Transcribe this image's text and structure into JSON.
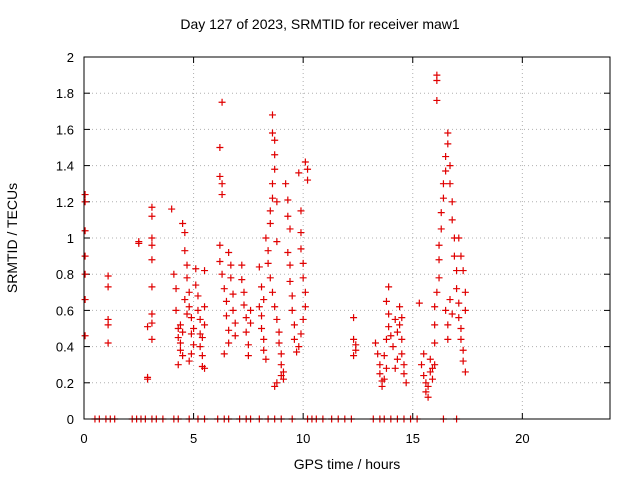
{
  "chart_data": {
    "type": "scatter",
    "title": "Day 127 of 2023, SRMTID for receiver maw1",
    "xlabel": "GPS time / hours",
    "ylabel": "SRMTID / TECUs",
    "xlim": [
      0,
      24
    ],
    "ylim": [
      0,
      2
    ],
    "xticks": [
      "0",
      "5",
      "10",
      "15",
      "20"
    ],
    "xtick_values": [
      0,
      5,
      10,
      15,
      20
    ],
    "yticks": [
      "0",
      "0.2",
      "0.4",
      "0.6",
      "0.8",
      "1",
      "1.2",
      "1.4",
      "1.6",
      "1.8",
      "2"
    ],
    "ytick_values": [
      0,
      0.2,
      0.4,
      0.6,
      0.8,
      1,
      1.2,
      1.4,
      1.6,
      1.8,
      2
    ],
    "grid": true,
    "marker": "+",
    "color": "#e00000",
    "series": [
      {
        "name": "maw1",
        "points": [
          [
            0.05,
            1.24
          ],
          [
            0.05,
            1.04
          ],
          [
            0.05,
            0.9
          ],
          [
            0.05,
            0.8
          ],
          [
            0.05,
            0.66
          ],
          [
            0.05,
            0.46
          ],
          [
            0.05,
            1.2
          ],
          [
            1.1,
            0.79
          ],
          [
            1.1,
            0.73
          ],
          [
            1.1,
            0.55
          ],
          [
            1.1,
            0.52
          ],
          [
            1.1,
            0.42
          ],
          [
            2.5,
            0.98
          ],
          [
            2.5,
            0.97
          ],
          [
            2.9,
            0.51
          ],
          [
            2.9,
            0.23
          ],
          [
            2.9,
            0.22
          ],
          [
            3.1,
            1.17
          ],
          [
            3.1,
            1.12
          ],
          [
            3.1,
            1.0
          ],
          [
            3.1,
            0.96
          ],
          [
            3.1,
            0.88
          ],
          [
            3.1,
            0.73
          ],
          [
            3.1,
            0.58
          ],
          [
            3.1,
            0.53
          ],
          [
            3.1,
            0.44
          ],
          [
            4.0,
            1.16
          ],
          [
            4.1,
            0.8
          ],
          [
            4.2,
            0.72
          ],
          [
            4.2,
            0.6
          ],
          [
            4.3,
            0.5
          ],
          [
            4.3,
            0.45
          ],
          [
            4.4,
            0.42
          ],
          [
            4.4,
            0.38
          ],
          [
            4.5,
            0.35
          ],
          [
            4.3,
            0.3
          ],
          [
            4.5,
            1.08
          ],
          [
            4.6,
            1.03
          ],
          [
            4.6,
            0.93
          ],
          [
            4.7,
            0.85
          ],
          [
            4.7,
            0.78
          ],
          [
            4.8,
            0.7
          ],
          [
            4.8,
            0.62
          ],
          [
            4.9,
            0.56
          ],
          [
            4.9,
            0.47
          ],
          [
            5.0,
            0.41
          ],
          [
            4.8,
            0.32
          ],
          [
            4.9,
            0.36
          ],
          [
            5.0,
            0.5
          ],
          [
            4.6,
            0.66
          ],
          [
            4.7,
            0.58
          ],
          [
            4.5,
            0.48
          ],
          [
            4.4,
            0.52
          ],
          [
            5.1,
            0.83
          ],
          [
            5.1,
            0.74
          ],
          [
            5.2,
            0.68
          ],
          [
            5.2,
            0.6
          ],
          [
            5.3,
            0.55
          ],
          [
            5.3,
            0.47
          ],
          [
            5.3,
            0.4
          ],
          [
            5.4,
            0.35
          ],
          [
            5.4,
            0.29
          ],
          [
            5.5,
            0.28
          ],
          [
            5.5,
            0.82
          ],
          [
            5.5,
            0.62
          ],
          [
            5.5,
            0.52
          ],
          [
            5.4,
            0.45
          ],
          [
            6.2,
            1.5
          ],
          [
            6.2,
            1.34
          ],
          [
            6.3,
            1.24
          ],
          [
            6.3,
            1.3
          ],
          [
            6.3,
            1.75
          ],
          [
            6.2,
            0.96
          ],
          [
            6.2,
            0.87
          ],
          [
            6.3,
            0.8
          ],
          [
            6.4,
            0.72
          ],
          [
            6.5,
            0.65
          ],
          [
            6.5,
            0.57
          ],
          [
            6.6,
            0.49
          ],
          [
            6.6,
            0.42
          ],
          [
            6.4,
            0.36
          ],
          [
            6.6,
            0.92
          ],
          [
            6.7,
            0.85
          ],
          [
            6.7,
            0.78
          ],
          [
            6.8,
            0.69
          ],
          [
            6.8,
            0.6
          ],
          [
            6.9,
            0.53
          ],
          [
            6.9,
            0.46
          ],
          [
            7.2,
            0.85
          ],
          [
            7.2,
            0.77
          ],
          [
            7.3,
            0.7
          ],
          [
            7.3,
            0.63
          ],
          [
            7.4,
            0.56
          ],
          [
            7.4,
            0.48
          ],
          [
            7.5,
            0.41
          ],
          [
            7.5,
            0.35
          ],
          [
            7.6,
            0.6
          ],
          [
            7.6,
            0.53
          ],
          [
            8.0,
            0.62
          ],
          [
            8.1,
            0.57
          ],
          [
            8.1,
            0.5
          ],
          [
            8.2,
            0.44
          ],
          [
            8.2,
            0.38
          ],
          [
            8.3,
            0.33
          ],
          [
            8.0,
            0.84
          ],
          [
            8.1,
            0.73
          ],
          [
            8.2,
            0.66
          ],
          [
            8.3,
            1.0
          ],
          [
            8.4,
            0.93
          ],
          [
            8.4,
            0.86
          ],
          [
            8.5,
            1.08
          ],
          [
            8.5,
            1.15
          ],
          [
            8.6,
            1.22
          ],
          [
            8.6,
            1.3
          ],
          [
            8.7,
            1.38
          ],
          [
            8.7,
            1.46
          ],
          [
            8.6,
            1.58
          ],
          [
            8.6,
            1.68
          ],
          [
            8.7,
            1.54
          ],
          [
            8.8,
            1.2
          ],
          [
            8.8,
            0.98
          ],
          [
            8.5,
            0.78
          ],
          [
            8.6,
            0.7
          ],
          [
            8.7,
            0.62
          ],
          [
            8.8,
            0.55
          ],
          [
            8.9,
            0.48
          ],
          [
            8.9,
            0.42
          ],
          [
            9.0,
            0.36
          ],
          [
            9.0,
            0.3
          ],
          [
            9.1,
            0.26
          ],
          [
            9.1,
            0.22
          ],
          [
            8.7,
            0.18
          ],
          [
            8.8,
            0.2
          ],
          [
            9.0,
            0.24
          ],
          [
            9.2,
            1.3
          ],
          [
            9.3,
            1.21
          ],
          [
            9.3,
            1.12
          ],
          [
            9.4,
            1.05
          ],
          [
            9.3,
            0.92
          ],
          [
            9.4,
            0.85
          ],
          [
            9.4,
            0.76
          ],
          [
            9.5,
            0.68
          ],
          [
            9.5,
            0.6
          ],
          [
            9.6,
            0.52
          ],
          [
            9.6,
            0.44
          ],
          [
            9.7,
            0.37
          ],
          [
            9.8,
            1.36
          ],
          [
            9.9,
            1.15
          ],
          [
            9.9,
            1.03
          ],
          [
            9.9,
            0.94
          ],
          [
            10.0,
            0.86
          ],
          [
            10.0,
            0.78
          ],
          [
            10.1,
            0.7
          ],
          [
            10.1,
            0.62
          ],
          [
            10.0,
            0.55
          ],
          [
            9.9,
            0.47
          ],
          [
            9.8,
            0.4
          ],
          [
            10.1,
            1.42
          ],
          [
            10.2,
            1.38
          ],
          [
            10.2,
            1.32
          ],
          [
            12.3,
            0.56
          ],
          [
            12.3,
            0.44
          ],
          [
            12.4,
            0.41
          ],
          [
            12.4,
            0.38
          ],
          [
            12.3,
            0.35
          ],
          [
            13.3,
            0.42
          ],
          [
            13.4,
            0.36
          ],
          [
            13.5,
            0.3
          ],
          [
            13.5,
            0.25
          ],
          [
            13.6,
            0.21
          ],
          [
            13.6,
            0.18
          ],
          [
            13.7,
            0.22
          ],
          [
            13.8,
            0.28
          ],
          [
            13.7,
            0.35
          ],
          [
            13.8,
            0.44
          ],
          [
            13.9,
            0.51
          ],
          [
            13.9,
            0.58
          ],
          [
            13.8,
            0.65
          ],
          [
            13.9,
            0.73
          ],
          [
            14.0,
            0.46
          ],
          [
            14.1,
            0.4
          ],
          [
            14.2,
            0.55
          ],
          [
            14.3,
            0.48
          ],
          [
            14.4,
            0.52
          ],
          [
            14.5,
            0.44
          ],
          [
            14.5,
            0.36
          ],
          [
            14.6,
            0.3
          ],
          [
            14.6,
            0.25
          ],
          [
            14.7,
            0.2
          ],
          [
            14.4,
            0.62
          ],
          [
            14.5,
            0.56
          ],
          [
            14.3,
            0.33
          ],
          [
            14.2,
            0.28
          ],
          [
            15.3,
            0.64
          ],
          [
            15.4,
            0.3
          ],
          [
            15.5,
            0.24
          ],
          [
            15.6,
            0.2
          ],
          [
            15.6,
            0.15
          ],
          [
            15.7,
            0.12
          ],
          [
            15.7,
            0.18
          ],
          [
            15.8,
            0.26
          ],
          [
            15.8,
            0.33
          ],
          [
            15.9,
            0.28
          ],
          [
            15.9,
            0.22
          ],
          [
            16.0,
            0.3
          ],
          [
            16.0,
            0.42
          ],
          [
            16.0,
            0.52
          ],
          [
            16.0,
            0.62
          ],
          [
            15.5,
            0.36
          ],
          [
            16.1,
            1.9
          ],
          [
            16.1,
            1.87
          ],
          [
            16.1,
            1.76
          ],
          [
            16.1,
            0.7
          ],
          [
            16.2,
            0.78
          ],
          [
            16.2,
            0.88
          ],
          [
            16.2,
            0.96
          ],
          [
            16.3,
            1.05
          ],
          [
            16.3,
            1.14
          ],
          [
            16.4,
            1.22
          ],
          [
            16.4,
            1.3
          ],
          [
            16.5,
            1.37
          ],
          [
            16.5,
            1.45
          ],
          [
            16.6,
            1.58
          ],
          [
            16.6,
            1.52
          ],
          [
            16.7,
            1.4
          ],
          [
            16.7,
            1.3
          ],
          [
            16.8,
            1.2
          ],
          [
            16.8,
            1.1
          ],
          [
            16.9,
            1.0
          ],
          [
            16.9,
            0.9
          ],
          [
            17.0,
            0.82
          ],
          [
            17.0,
            0.72
          ],
          [
            17.1,
            0.64
          ],
          [
            17.1,
            0.56
          ],
          [
            17.2,
            0.5
          ],
          [
            17.2,
            0.44
          ],
          [
            17.3,
            0.38
          ],
          [
            17.3,
            0.32
          ],
          [
            17.4,
            0.26
          ],
          [
            17.4,
            0.6
          ],
          [
            17.4,
            0.7
          ],
          [
            17.3,
            0.82
          ],
          [
            17.2,
            0.9
          ],
          [
            17.1,
            1.0
          ],
          [
            16.5,
            0.6
          ],
          [
            16.6,
            0.52
          ],
          [
            16.6,
            0.44
          ],
          [
            16.7,
            0.66
          ],
          [
            16.8,
            0.58
          ]
        ]
      }
    ],
    "zero_points_x": [
      0.5,
      0.7,
      1.0,
      1.2,
      1.4,
      2.2,
      2.4,
      2.6,
      2.8,
      3.1,
      3.3,
      3.6,
      4.1,
      4.3,
      4.8,
      5.2,
      5.5,
      6.1,
      6.4,
      6.6,
      7.1,
      7.4,
      7.6,
      8.0,
      8.4,
      8.7,
      9.0,
      9.5,
      10.2,
      10.4,
      10.6,
      10.9,
      11.3,
      11.6,
      11.9,
      12.2,
      13.2,
      13.5,
      13.7,
      14.0,
      14.3,
      14.6,
      14.9,
      15.2,
      16.4,
      17.0
    ]
  }
}
